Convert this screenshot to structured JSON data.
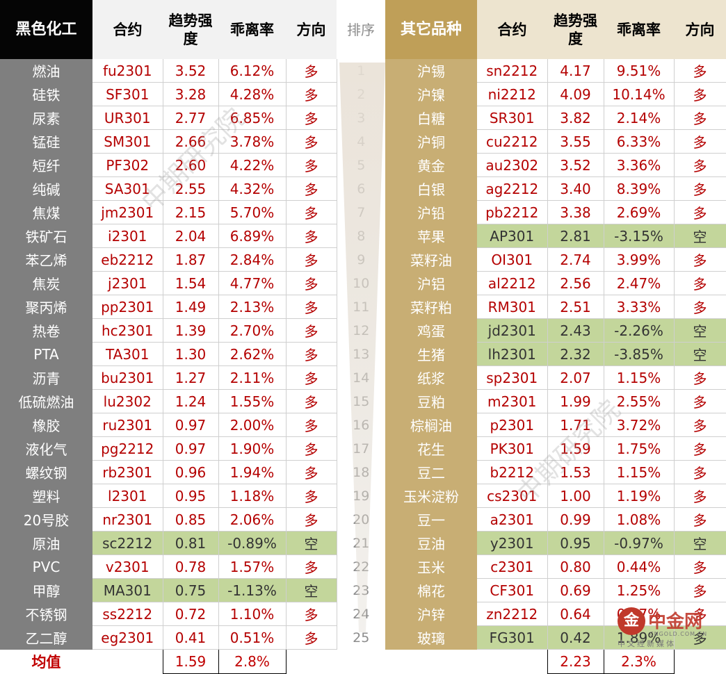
{
  "headers": {
    "left_category": "黑色化工",
    "contract": "合约",
    "trend_strength": "趋势强度",
    "deviation": "乖离率",
    "direction": "方向",
    "rank": "排序",
    "right_category": "其它品种"
  },
  "left_rows": [
    {
      "name": "燃油",
      "contract": "fu2301",
      "strength": "3.52",
      "deviation": "6.12%",
      "direction": "多",
      "highlight": false
    },
    {
      "name": "硅铁",
      "contract": "SF301",
      "strength": "3.28",
      "deviation": "4.28%",
      "direction": "多",
      "highlight": false
    },
    {
      "name": "尿素",
      "contract": "UR301",
      "strength": "2.77",
      "deviation": "6.85%",
      "direction": "多",
      "highlight": false
    },
    {
      "name": "锰硅",
      "contract": "SM301",
      "strength": "2.66",
      "deviation": "3.78%",
      "direction": "多",
      "highlight": false
    },
    {
      "name": "短纤",
      "contract": "PF302",
      "strength": "2.60",
      "deviation": "4.22%",
      "direction": "多",
      "highlight": false
    },
    {
      "name": "纯碱",
      "contract": "SA301",
      "strength": "2.55",
      "deviation": "4.32%",
      "direction": "多",
      "highlight": false
    },
    {
      "name": "焦煤",
      "contract": "jm2301",
      "strength": "2.15",
      "deviation": "5.70%",
      "direction": "多",
      "highlight": false
    },
    {
      "name": "铁矿石",
      "contract": "i2301",
      "strength": "2.04",
      "deviation": "6.89%",
      "direction": "多",
      "highlight": false
    },
    {
      "name": "苯乙烯",
      "contract": "eb2212",
      "strength": "1.87",
      "deviation": "2.84%",
      "direction": "多",
      "highlight": false
    },
    {
      "name": "焦炭",
      "contract": "j2301",
      "strength": "1.54",
      "deviation": "4.77%",
      "direction": "多",
      "highlight": false
    },
    {
      "name": "聚丙烯",
      "contract": "pp2301",
      "strength": "1.49",
      "deviation": "2.13%",
      "direction": "多",
      "highlight": false
    },
    {
      "name": "热卷",
      "contract": "hc2301",
      "strength": "1.39",
      "deviation": "2.70%",
      "direction": "多",
      "highlight": false
    },
    {
      "name": "PTA",
      "contract": "TA301",
      "strength": "1.30",
      "deviation": "2.62%",
      "direction": "多",
      "highlight": false
    },
    {
      "name": "沥青",
      "contract": "bu2301",
      "strength": "1.27",
      "deviation": "2.11%",
      "direction": "多",
      "highlight": false
    },
    {
      "name": "低硫燃油",
      "contract": "lu2302",
      "strength": "1.24",
      "deviation": "1.55%",
      "direction": "多",
      "highlight": false
    },
    {
      "name": "橡胶",
      "contract": "ru2301",
      "strength": "0.97",
      "deviation": "2.00%",
      "direction": "多",
      "highlight": false
    },
    {
      "name": "液化气",
      "contract": "pg2212",
      "strength": "0.97",
      "deviation": "1.90%",
      "direction": "多",
      "highlight": false
    },
    {
      "name": "螺纹钢",
      "contract": "rb2301",
      "strength": "0.96",
      "deviation": "1.94%",
      "direction": "多",
      "highlight": false
    },
    {
      "name": "塑料",
      "contract": "l2301",
      "strength": "0.95",
      "deviation": "1.18%",
      "direction": "多",
      "highlight": false
    },
    {
      "name": "20号胶",
      "contract": "nr2301",
      "strength": "0.85",
      "deviation": "2.06%",
      "direction": "多",
      "highlight": false
    },
    {
      "name": "原油",
      "contract": "sc2212",
      "strength": "0.81",
      "deviation": "-0.89%",
      "direction": "空",
      "highlight": true
    },
    {
      "name": "PVC",
      "contract": "v2301",
      "strength": "0.78",
      "deviation": "1.57%",
      "direction": "多",
      "highlight": false
    },
    {
      "name": "甲醇",
      "contract": "MA301",
      "strength": "0.75",
      "deviation": "-1.13%",
      "direction": "空",
      "highlight": true
    },
    {
      "name": "不锈钢",
      "contract": "ss2212",
      "strength": "0.72",
      "deviation": "1.10%",
      "direction": "多",
      "highlight": false
    },
    {
      "name": "乙二醇",
      "contract": "eg2301",
      "strength": "0.41",
      "deviation": "0.51%",
      "direction": "多",
      "highlight": false
    }
  ],
  "ranks": [
    "1",
    "2",
    "3",
    "4",
    "5",
    "6",
    "7",
    "8",
    "9",
    "10",
    "11",
    "12",
    "13",
    "14",
    "15",
    "16",
    "17",
    "18",
    "19",
    "20",
    "21",
    "22",
    "23",
    "24",
    "25"
  ],
  "right_rows": [
    {
      "name": "沪锡",
      "contract": "sn2212",
      "strength": "4.17",
      "deviation": "9.51%",
      "direction": "多",
      "highlight": false
    },
    {
      "name": "沪镍",
      "contract": "ni2212",
      "strength": "4.09",
      "deviation": "10.14%",
      "direction": "多",
      "highlight": false
    },
    {
      "name": "白糖",
      "contract": "SR301",
      "strength": "3.82",
      "deviation": "2.14%",
      "direction": "多",
      "highlight": false
    },
    {
      "name": "沪铜",
      "contract": "cu2212",
      "strength": "3.55",
      "deviation": "6.33%",
      "direction": "多",
      "highlight": false
    },
    {
      "name": "黄金",
      "contract": "au2302",
      "strength": "3.52",
      "deviation": "3.36%",
      "direction": "多",
      "highlight": false
    },
    {
      "name": "白银",
      "contract": "ag2212",
      "strength": "3.40",
      "deviation": "8.39%",
      "direction": "多",
      "highlight": false
    },
    {
      "name": "沪铅",
      "contract": "pb2212",
      "strength": "3.38",
      "deviation": "2.69%",
      "direction": "多",
      "highlight": false
    },
    {
      "name": "苹果",
      "contract": "AP301",
      "strength": "2.81",
      "deviation": "-3.15%",
      "direction": "空",
      "highlight": true
    },
    {
      "name": "菜籽油",
      "contract": "OI301",
      "strength": "2.74",
      "deviation": "3.99%",
      "direction": "多",
      "highlight": false
    },
    {
      "name": "沪铝",
      "contract": "al2212",
      "strength": "2.56",
      "deviation": "2.47%",
      "direction": "多",
      "highlight": false
    },
    {
      "name": "菜籽粕",
      "contract": "RM301",
      "strength": "2.51",
      "deviation": "3.33%",
      "direction": "多",
      "highlight": false
    },
    {
      "name": "鸡蛋",
      "contract": "jd2301",
      "strength": "2.43",
      "deviation": "-2.26%",
      "direction": "空",
      "highlight": true
    },
    {
      "name": "生猪",
      "contract": "lh2301",
      "strength": "2.32",
      "deviation": "-3.85%",
      "direction": "空",
      "highlight": true
    },
    {
      "name": "纸浆",
      "contract": "sp2301",
      "strength": "2.07",
      "deviation": "1.15%",
      "direction": "多",
      "highlight": false
    },
    {
      "name": "豆粕",
      "contract": "m2301",
      "strength": "1.99",
      "deviation": "2.55%",
      "direction": "多",
      "highlight": false
    },
    {
      "name": "棕榈油",
      "contract": "p2301",
      "strength": "1.71",
      "deviation": "3.72%",
      "direction": "多",
      "highlight": false
    },
    {
      "name": "花生",
      "contract": "PK301",
      "strength": "1.59",
      "deviation": "1.75%",
      "direction": "多",
      "highlight": false
    },
    {
      "name": "豆二",
      "contract": "b2212",
      "strength": "1.53",
      "deviation": "1.15%",
      "direction": "多",
      "highlight": false
    },
    {
      "name": "玉米淀粉",
      "contract": "cs2301",
      "strength": "1.00",
      "deviation": "1.19%",
      "direction": "多",
      "highlight": false
    },
    {
      "name": "豆一",
      "contract": "a2301",
      "strength": "0.99",
      "deviation": "1.08%",
      "direction": "多",
      "highlight": false
    },
    {
      "name": "豆油",
      "contract": "y2301",
      "strength": "0.95",
      "deviation": "-0.97%",
      "direction": "空",
      "highlight": true
    },
    {
      "name": "玉米",
      "contract": "c2301",
      "strength": "0.80",
      "deviation": "0.44%",
      "direction": "多",
      "highlight": false
    },
    {
      "name": "棉花",
      "contract": "CF301",
      "strength": "0.69",
      "deviation": "1.25%",
      "direction": "多",
      "highlight": false
    },
    {
      "name": "沪锌",
      "contract": "zn2212",
      "strength": "0.64",
      "deviation": "0.97%",
      "direction": "多",
      "highlight": false
    },
    {
      "name": "玻璃",
      "contract": "FG301",
      "strength": "0.42",
      "deviation": "1.89%",
      "direction": "多",
      "highlight": true
    }
  ],
  "averages": {
    "label": "均值",
    "left_strength": "1.59",
    "left_deviation": "2.8%",
    "right_strength": "2.23",
    "right_deviation": "2.3%"
  },
  "watermark": {
    "text": "中期研究院"
  },
  "logo": {
    "brand": "中金网",
    "mark": "金",
    "domain": "CNGOLD.COM.CN",
    "tagline": "中文经新媒体"
  },
  "colors": {
    "left_category_bg": "#7f7f7f",
    "right_category_bg": "#c8ae74",
    "right_header_bg": "#bf9f58",
    "value_text": "#b40000",
    "highlight_green": "#c3d69b"
  }
}
